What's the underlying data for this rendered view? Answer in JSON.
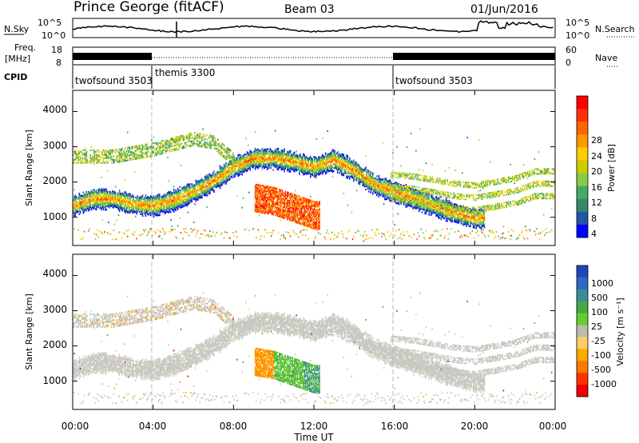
{
  "header": {
    "station": "Prince George (fitACF)",
    "beam": "Beam 03",
    "date": "01/Jun/2016"
  },
  "top_panel": {
    "nsky_label": "N.Sky",
    "nsky_ticks": [
      "10^5",
      "10^0"
    ],
    "nsearch_label": "N.Search",
    "nsearch_ticks": [
      "10^5",
      "10^0"
    ],
    "freq_label_1": "Freq.",
    "freq_label_2": "[MHz]",
    "freq_ticks": [
      "18",
      "8"
    ],
    "nave_label": "Nave",
    "nave_ticks": [
      "60",
      "0"
    ],
    "cpid_label": "CPID",
    "cpid_segments": [
      {
        "name": "twofsound 3503",
        "start": 0,
        "end": 4
      },
      {
        "name": "themis 3300",
        "start": 4,
        "end": 16
      },
      {
        "name": "twofsound 3503",
        "start": 16,
        "end": 24
      }
    ]
  },
  "x_axis": {
    "label": "Time UT",
    "ticks": [
      "00:00",
      "04:00",
      "08:00",
      "12:00",
      "16:00",
      "20:00",
      "00:00"
    ]
  },
  "power_panel": {
    "ylabel": "Slant Range [km]",
    "yticks": [
      "4000",
      "3000",
      "2000",
      "1000"
    ],
    "cbar_label": "Power [dB]",
    "cbar_ticks": [
      "28",
      "24",
      "20",
      "16",
      "12",
      "8",
      "4"
    ],
    "cbar_colors": [
      "#ff0000",
      "#ff3300",
      "#ff6600",
      "#ff9900",
      "#ffcc00",
      "#cccc00",
      "#88cc44",
      "#44aa66",
      "#338866",
      "#2255aa",
      "#0000ff"
    ]
  },
  "velocity_panel": {
    "ylabel": "Slant Range [km]",
    "yticks": [
      "4000",
      "3000",
      "2000",
      "1000"
    ],
    "cbar_label": "Velocity [m s⁻¹]",
    "cbar_ticks": [
      "1000",
      "500",
      "100",
      "25",
      "-25",
      "-100",
      "-500",
      "-1000"
    ],
    "cbar_colors": [
      "#2244bb",
      "#2a6abf",
      "#3a8c9a",
      "#44aa44",
      "#66cc33",
      "#bbbbaa",
      "#ffcc66",
      "#ffaa00",
      "#ff7700",
      "#ff3300",
      "#ee0000"
    ]
  },
  "chart_data": {
    "type": "heatmap",
    "x_unit": "hours UT",
    "xlim": [
      0,
      24
    ],
    "ylim": [
      200,
      4600
    ],
    "bands": [
      {
        "name": "main_band",
        "points": [
          [
            0,
            1300
          ],
          [
            1,
            1500
          ],
          [
            2,
            1500
          ],
          [
            3,
            1350
          ],
          [
            4,
            1300
          ],
          [
            5,
            1450
          ],
          [
            6,
            1700
          ],
          [
            7,
            2000
          ],
          [
            8,
            2400
          ],
          [
            9,
            2650
          ],
          [
            10,
            2650
          ],
          [
            11,
            2550
          ],
          [
            12,
            2400
          ],
          [
            13,
            2600
          ],
          [
            14,
            2300
          ],
          [
            15,
            1900
          ],
          [
            16,
            1700
          ],
          [
            17,
            1500
          ],
          [
            18,
            1300
          ],
          [
            19,
            1100
          ],
          [
            20,
            950
          ]
        ]
      },
      {
        "name": "upper_band",
        "points": [
          [
            0,
            2700
          ],
          [
            2,
            2700
          ],
          [
            4,
            2900
          ],
          [
            6,
            3200
          ],
          [
            7,
            3100
          ],
          [
            8,
            2600
          ]
        ]
      },
      {
        "name": "late_bands",
        "points": [
          [
            16,
            2200
          ],
          [
            17,
            2150
          ],
          [
            18,
            2050
          ],
          [
            19,
            1950
          ],
          [
            20,
            1900
          ],
          [
            21,
            2000
          ],
          [
            22,
            2100
          ],
          [
            23,
            2300
          ]
        ]
      },
      {
        "name": "cluster_9_12",
        "points": [
          [
            9,
            1500
          ],
          [
            10,
            1400
          ],
          [
            11,
            1200
          ],
          [
            12,
            1000
          ]
        ]
      }
    ]
  }
}
